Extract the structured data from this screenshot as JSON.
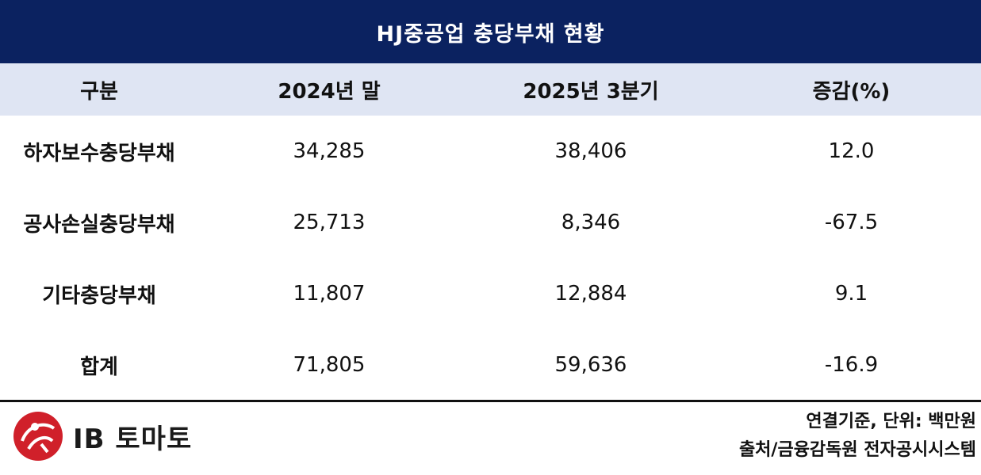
{
  "title": "HJ중공업 충당부채 현황",
  "table": {
    "headers": [
      "구분",
      "2024년 말",
      "2025년 3분기",
      "증감(%)"
    ],
    "rows": [
      {
        "label": "하자보수충당부채",
        "v2024": "34,285",
        "v2025q3": "38,406",
        "change": "12.0"
      },
      {
        "label": "공사손실충당부채",
        "v2024": "25,713",
        "v2025q3": "8,346",
        "change": "-67.5"
      },
      {
        "label": "기타충당부채",
        "v2024": "11,807",
        "v2025q3": "12,884",
        "change": "9.1"
      },
      {
        "label": "합계",
        "v2024": "71,805",
        "v2025q3": "59,636",
        "change": "-16.9"
      }
    ]
  },
  "footer": {
    "logo_text": "IB 토마토",
    "note_basis": "연결기준, 단위: 백만원",
    "note_source": "출처/금융감독원 전자공시시스템"
  },
  "colors": {
    "title_bg": "#0b2260",
    "header_bg": "#dfe5f3",
    "logo_red": "#d0202a"
  }
}
